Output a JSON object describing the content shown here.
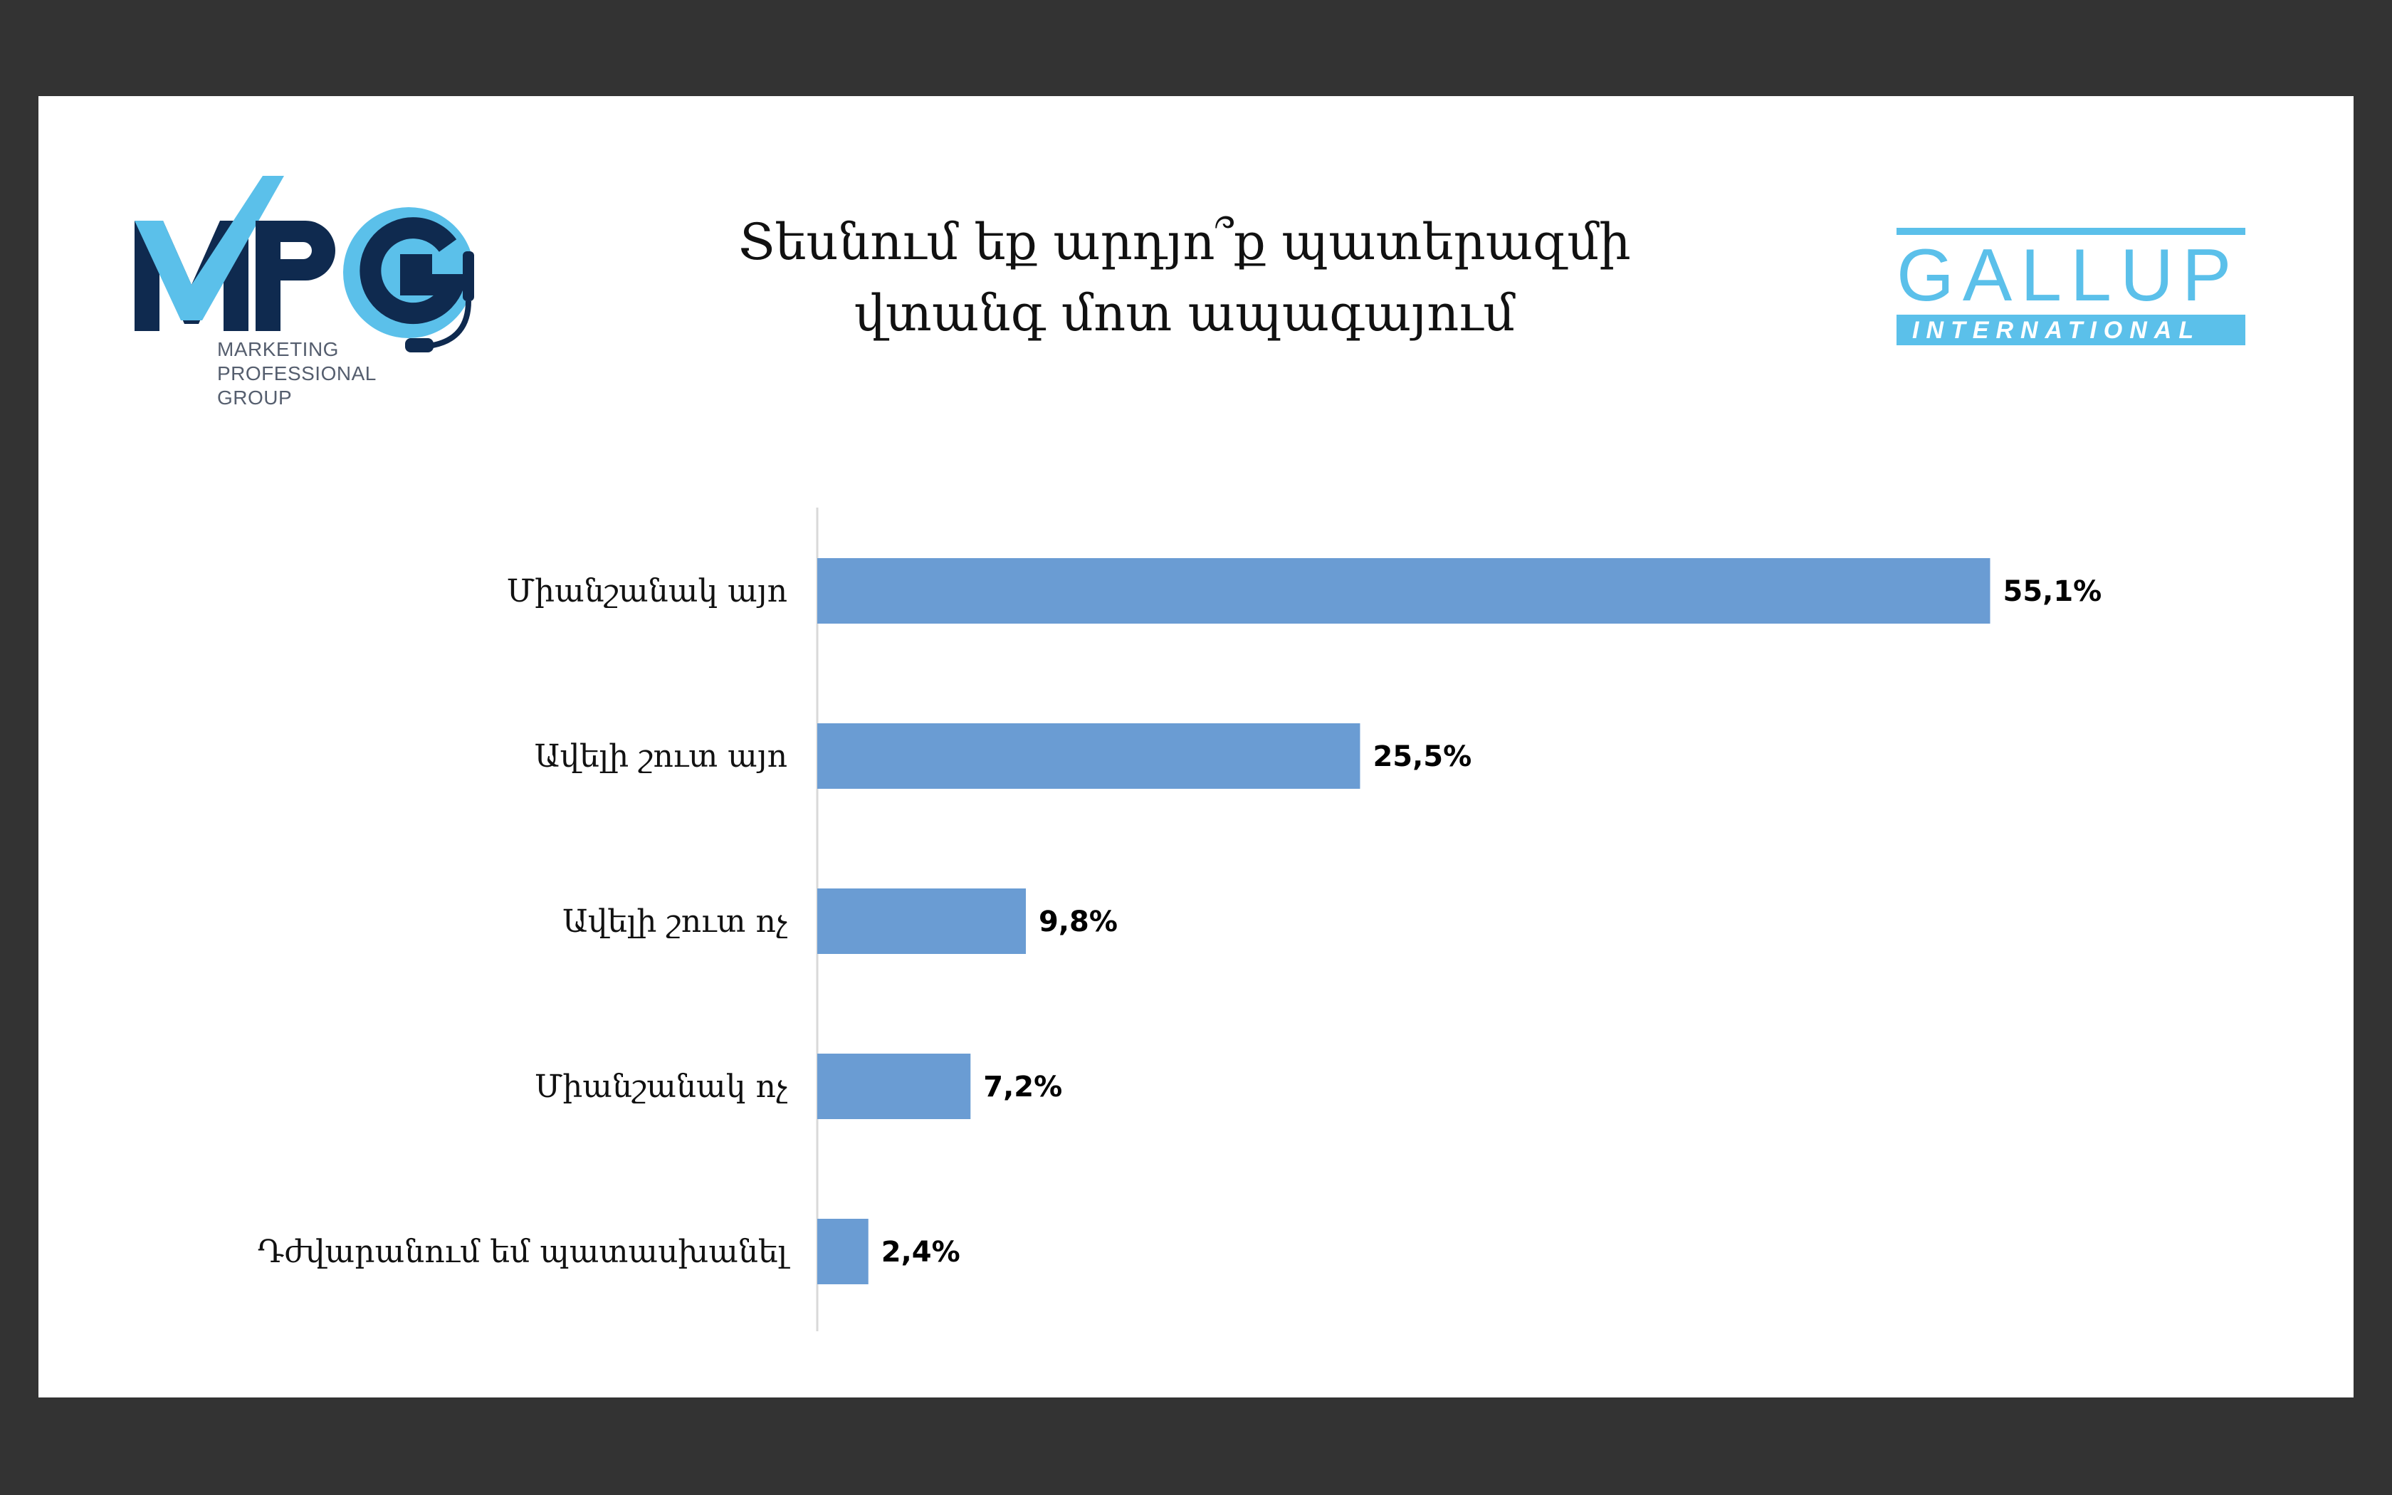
{
  "brand": {
    "mpg_logo_text": "MPG",
    "mpg_subtitle": [
      "MARKETING",
      "PROFESSIONAL",
      "GROUP"
    ],
    "gallup_name": "GALLUP",
    "gallup_sub": "INTERNATIONAL"
  },
  "colors": {
    "bar": "#6a9cd3",
    "mpg_navy": "#0f2a4f",
    "mpg_light": "#5bc0ea",
    "gallup": "#5bc0ea"
  },
  "chart_data": {
    "type": "bar",
    "orientation": "horizontal",
    "title_lines": [
      "Տեսնում եք արդյո՞ք պատերազմի",
      "վտանգ մոտ ապագայում"
    ],
    "categories": [
      "Միանշանակ այո",
      "Ավելի շուտ այո",
      "Ավելի շուտ ոչ",
      "Միանշանակ ոչ",
      "Դժվարանում եմ պատասխանել"
    ],
    "values": [
      55.1,
      25.5,
      9.8,
      7.2,
      2.4
    ],
    "value_labels": [
      "55,1%",
      "25,5%",
      "9,8%",
      "7,2%",
      "2,4%"
    ],
    "xlim": [
      0,
      60
    ],
    "grid": false,
    "legend": "none"
  }
}
